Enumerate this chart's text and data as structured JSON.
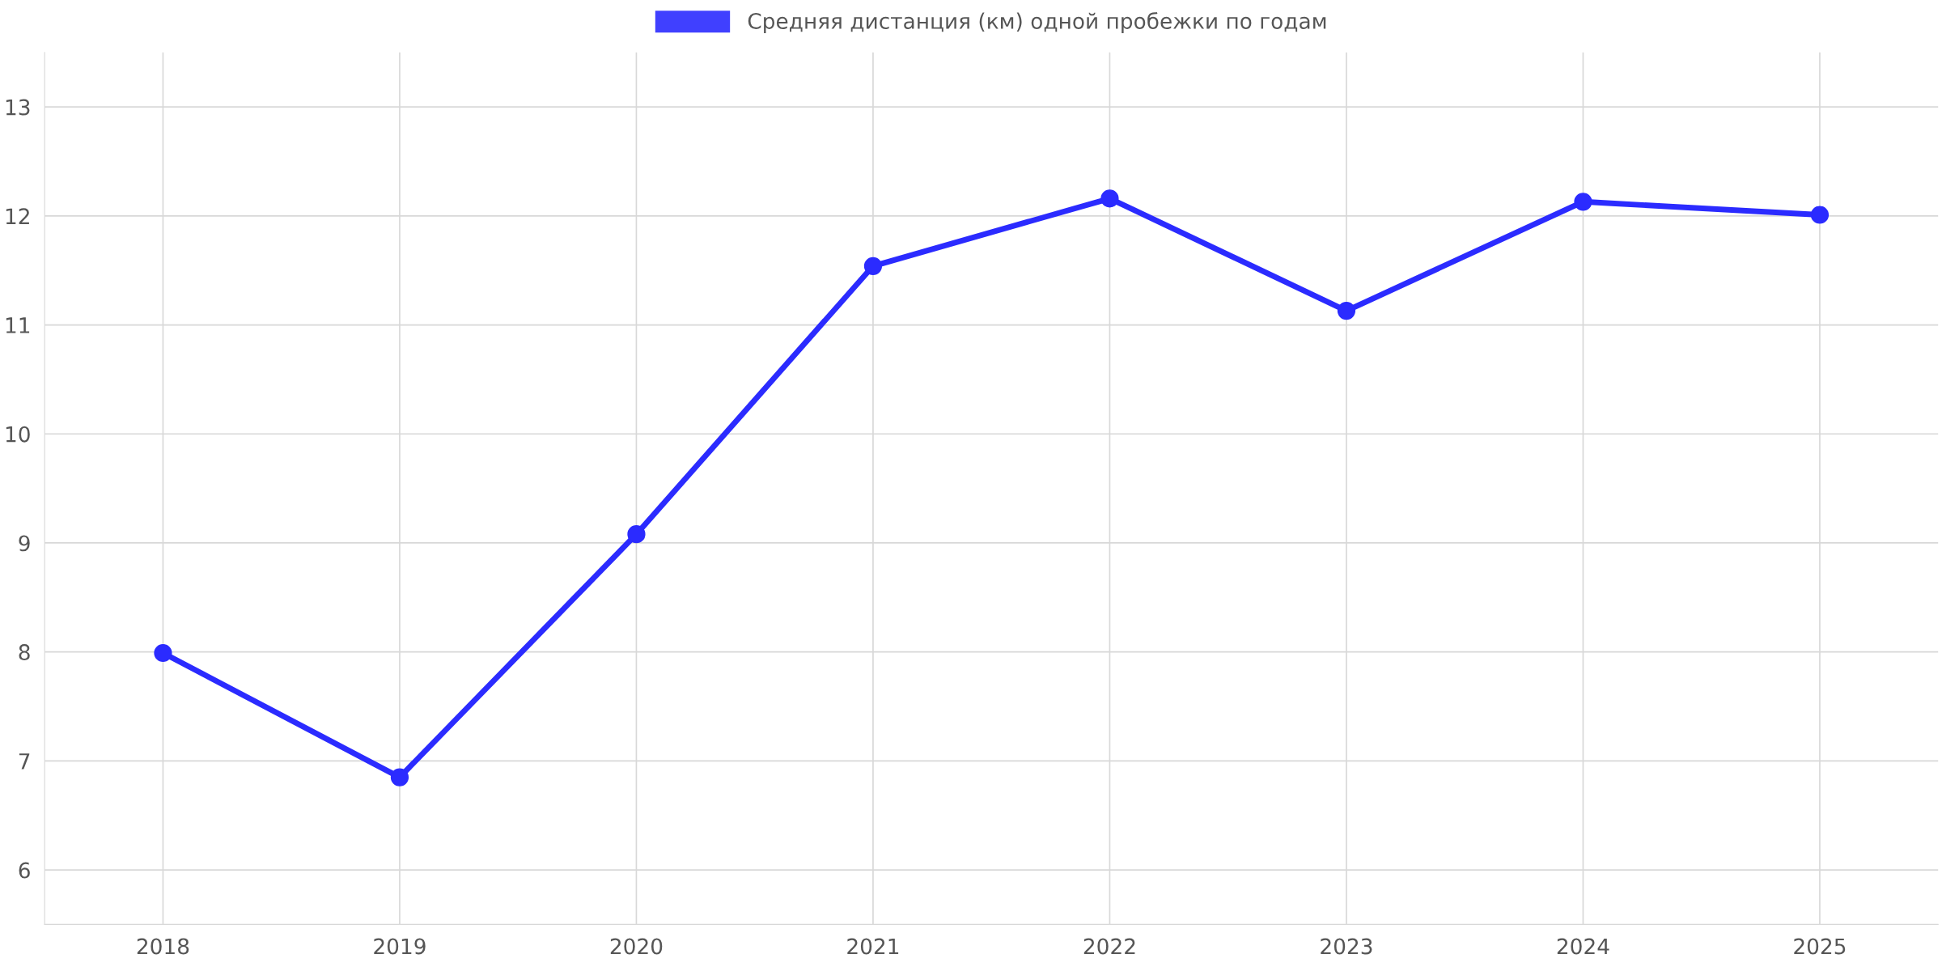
{
  "chart_data": {
    "type": "line",
    "categories": [
      "2018",
      "2019",
      "2020",
      "2021",
      "2022",
      "2023",
      "2024",
      "2025"
    ],
    "series": [
      {
        "name": "Средняя дистанция (км) одной пробежки по годам",
        "color": "#2b2bff",
        "values": [
          7.99,
          6.85,
          9.08,
          11.54,
          12.16,
          11.13,
          12.13,
          12.01
        ]
      }
    ],
    "ylim": [
      5.5,
      13.5
    ],
    "yticks": [
      6,
      7,
      8,
      9,
      10,
      11,
      12,
      13
    ],
    "grid": true,
    "legend": "top",
    "marker": "circle",
    "line_style": "solid"
  }
}
